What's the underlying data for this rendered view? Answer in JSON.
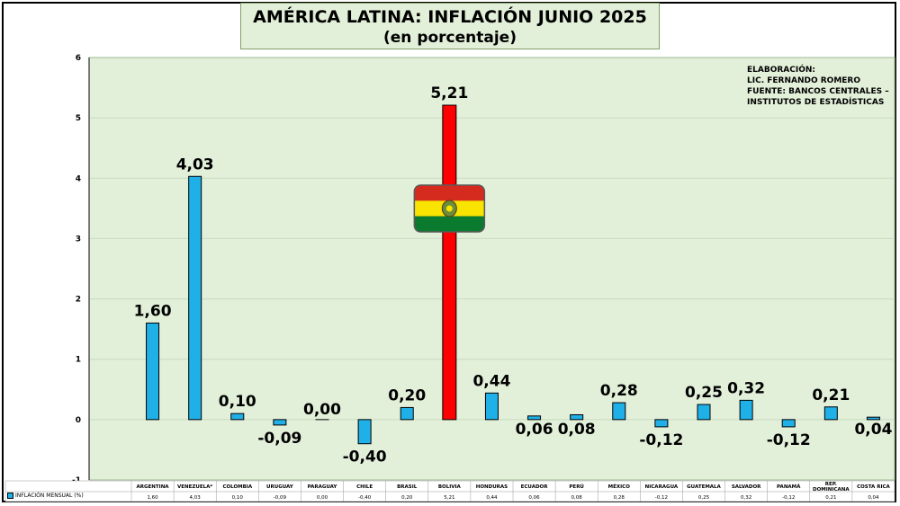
{
  "title": "AMÉRICA LATINA: INFLACIÓN JUNIO 2025",
  "subtitle": "(en porcentaje)",
  "credits": [
    "ELABORACIÓN:",
    "LIC. FERNANDO ROMERO",
    "FUENTE: BANCOS CENTRALES –",
    "INSTITUTOS DE ESTADÍSTICAS"
  ],
  "colors": {
    "bar": "#1fb0e8",
    "highlight": "#ff0000",
    "plot_bg": "#e2efd9",
    "grid": "#c8dcc0"
  },
  "chart_data": {
    "type": "bar",
    "categories": [
      "ARGENTINA",
      "VENEZUELA*",
      "COLOMBIA",
      "URUGUAY",
      "PARAGUAY",
      "CHILE",
      "BRASIL",
      "BOLIVIA",
      "HONDURAS",
      "ECUADOR",
      "PERÚ",
      "MÉXICO",
      "NICARAGUA",
      "GUATEMALA",
      "SALVADOR",
      "PANAMÁ",
      "REP. DOMINICANA",
      "COSTA RICA"
    ],
    "series": [
      {
        "name": "INFLACIÓN MENSUAL (%)",
        "values": [
          1.6,
          4.03,
          0.1,
          -0.09,
          0.0,
          -0.4,
          0.2,
          5.21,
          0.44,
          0.06,
          0.08,
          0.28,
          -0.12,
          0.25,
          0.32,
          -0.12,
          0.21,
          0.04
        ],
        "labels": [
          "1,60",
          "4,03",
          "0,10",
          "-0,09",
          "0,00",
          "-0,40",
          "0,20",
          "5,21",
          "0,44",
          "0,06",
          "0,08",
          "0,28",
          "-0,12",
          "0,25",
          "0,32",
          "-0,12",
          "0,21",
          "0,04"
        ]
      }
    ],
    "highlight_category": "BOLIVIA",
    "flag_icon": "bolivia-flag-icon",
    "ylim": [
      -1,
      6
    ],
    "yticks": [
      "-1",
      "0",
      "1",
      "2",
      "3",
      "4",
      "5",
      "6"
    ],
    "grid": true,
    "legend": "bottom data table"
  }
}
